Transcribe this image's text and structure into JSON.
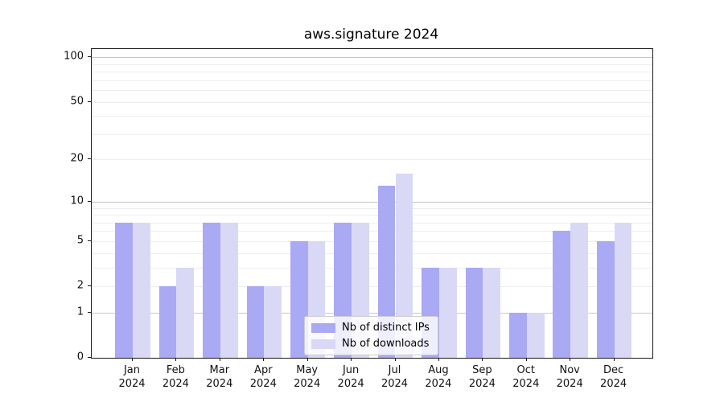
{
  "chart_data": {
    "type": "bar",
    "title": "aws.signature 2024",
    "categories": [
      "Jan 2024",
      "Feb 2024",
      "Mar 2024",
      "Apr 2024",
      "May 2024",
      "Jun 2024",
      "Jul 2024",
      "Aug 2024",
      "Sep 2024",
      "Oct 2024",
      "Nov 2024",
      "Dec 2024"
    ],
    "series": [
      {
        "name": "Nb of distinct IPs",
        "color": "#a9a9f4",
        "values": [
          7,
          2,
          7,
          2,
          5,
          7,
          13,
          3,
          3,
          1,
          6,
          5
        ]
      },
      {
        "name": "Nb of downloads",
        "color": "#d9d9f6",
        "values": [
          7,
          3,
          7,
          2,
          5,
          7,
          16,
          3,
          3,
          1,
          7,
          7
        ]
      }
    ],
    "xlabel": "",
    "ylabel": "",
    "yscale": "log1p",
    "yticks": [
      0,
      1,
      2,
      5,
      10,
      20,
      50,
      100
    ],
    "ylim": [
      0,
      113.5
    ],
    "grid": true,
    "legend_position": "lower center",
    "background_color": "#ffffff",
    "gridline_major_color": "#c8c8c8",
    "gridline_minor_color": "#ededed"
  }
}
